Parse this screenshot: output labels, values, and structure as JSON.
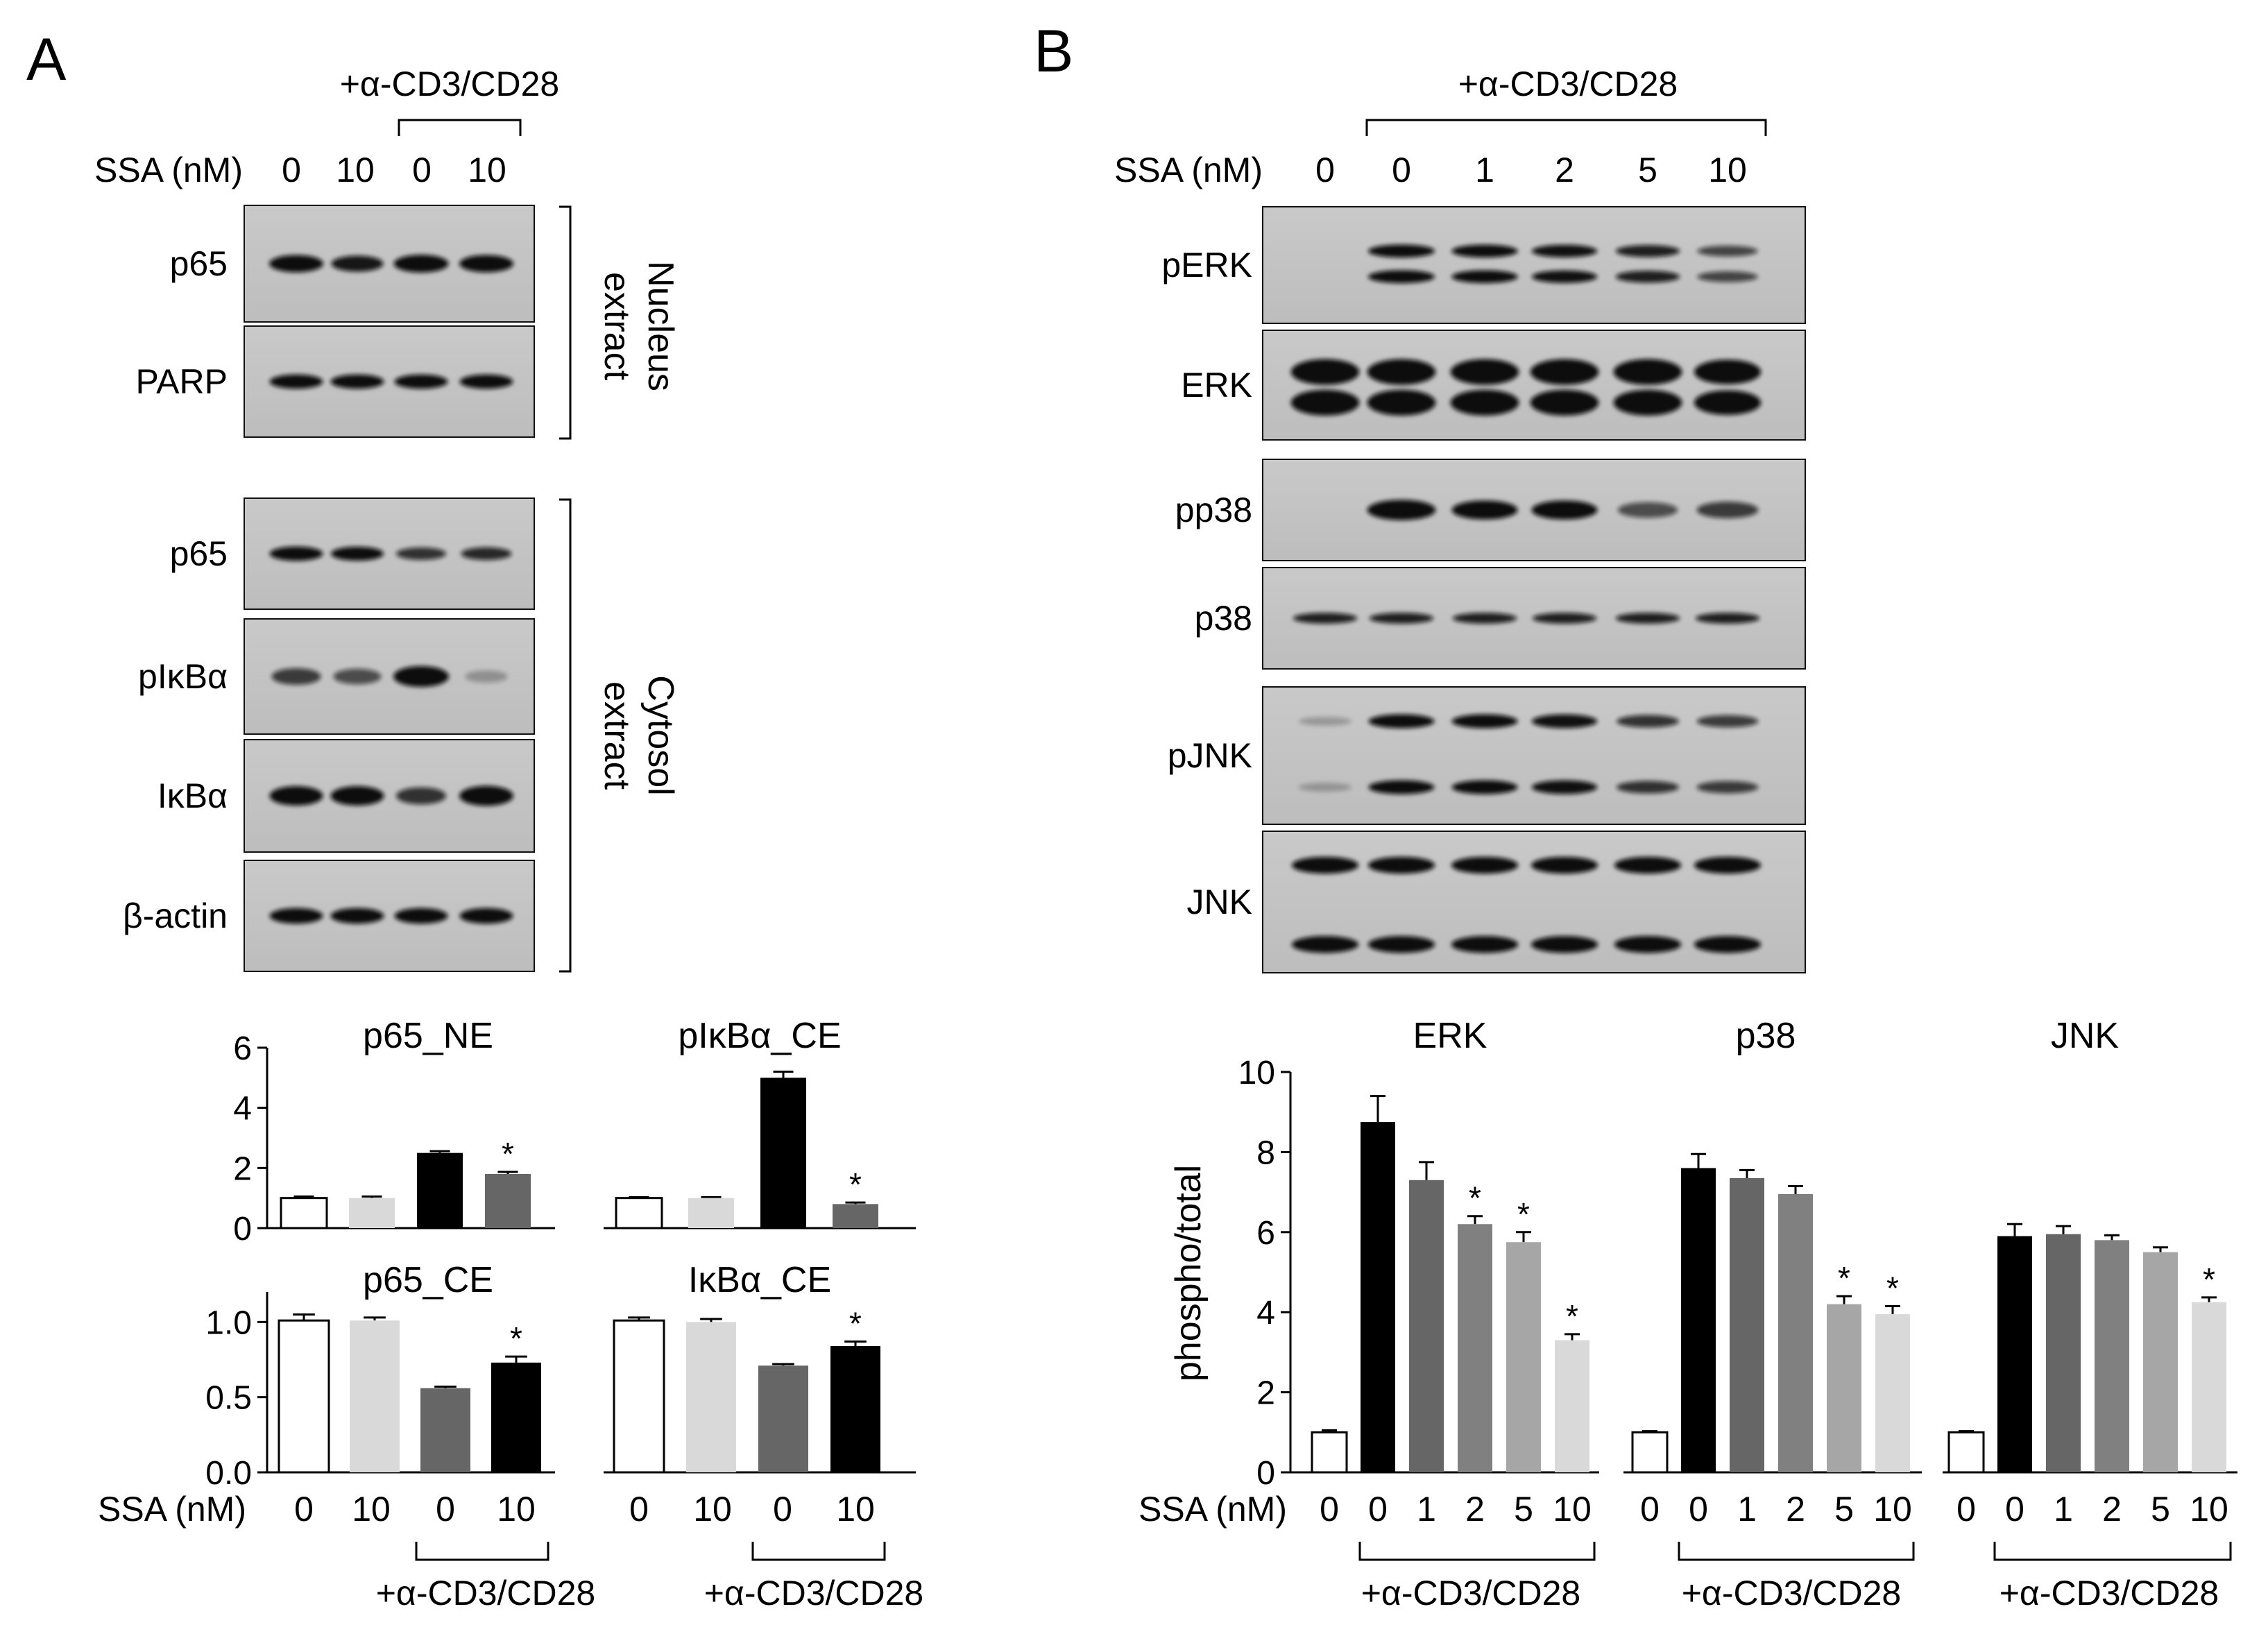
{
  "panels": {
    "A": {
      "label": "A",
      "treatment": "+α-CD3/CD28",
      "ssa_label": "SSA (nM)",
      "ssa_doses": [
        "0",
        "10",
        "0",
        "10"
      ],
      "nucleus_group": [
        "Nucleus",
        "extract"
      ],
      "cytosol_group": [
        "Cytosol",
        "extract"
      ],
      "blots": [
        {
          "label": "p65",
          "intensity": [
            0.9,
            0.75,
            0.95,
            0.9
          ]
        },
        {
          "label": "PARP",
          "intensity": [
            0.85,
            0.85,
            0.85,
            0.85
          ]
        },
        {
          "label": "p65",
          "intensity": [
            0.85,
            0.8,
            0.6,
            0.65
          ]
        },
        {
          "label": "pIκBα",
          "intensity": [
            0.55,
            0.45,
            1.0,
            0.08
          ]
        },
        {
          "label": "IκBα",
          "intensity": [
            0.85,
            0.85,
            0.6,
            0.9
          ]
        },
        {
          "label": "β-actin",
          "intensity": [
            0.85,
            0.85,
            0.85,
            0.85
          ]
        }
      ]
    },
    "B": {
      "label": "B",
      "treatment": "+α-CD3/CD28",
      "ssa_label": "SSA (nM)",
      "ssa_doses": [
        "0",
        "0",
        "1",
        "2",
        "5",
        "10"
      ],
      "blots": [
        {
          "label": "pERK",
          "intensity": [
            0.02,
            0.85,
            0.82,
            0.78,
            0.7,
            0.5
          ]
        },
        {
          "label": "ERK",
          "intensity": [
            0.95,
            0.95,
            0.95,
            0.95,
            0.95,
            0.85
          ]
        },
        {
          "label": "pp38",
          "intensity": [
            0.02,
            0.95,
            0.8,
            0.8,
            0.45,
            0.55
          ]
        },
        {
          "label": "p38",
          "intensity": [
            0.7,
            0.7,
            0.7,
            0.7,
            0.7,
            0.7
          ]
        },
        {
          "label": "pJNK",
          "intensity": [
            0.05,
            0.8,
            0.8,
            0.78,
            0.6,
            0.55
          ]
        },
        {
          "label": "JNK",
          "intensity": [
            0.85,
            0.85,
            0.85,
            0.85,
            0.85,
            0.85
          ]
        }
      ]
    }
  },
  "colors": {
    "white": "#ffffff",
    "light_gray": "#d9d9d9",
    "dark_gray": "#666666",
    "black": "#000000",
    "gray_2": "#808080",
    "gray_5": "#a6a6a6",
    "gray_10": "#d9d9d9"
  },
  "chart_data": [
    {
      "type": "bar",
      "title": "p65_NE",
      "categories": [
        "0",
        "10",
        "0",
        "10"
      ],
      "values": [
        1.0,
        1.0,
        2.5,
        1.8
      ],
      "errors": [
        0.05,
        0.05,
        0.06,
        0.07
      ],
      "significant": [
        false,
        false,
        false,
        true
      ],
      "ylim": [
        0,
        6
      ],
      "yticks": [
        "0",
        "2",
        "4",
        "6"
      ],
      "bar_colors": [
        "#ffffff",
        "#d9d9d9",
        "#000000",
        "#666666"
      ]
    },
    {
      "type": "bar",
      "title": "pIκBα_CE",
      "categories": [
        "0",
        "10",
        "0",
        "10"
      ],
      "values": [
        1.0,
        1.0,
        5.0,
        0.8
      ],
      "errors": [
        0.03,
        0.03,
        0.2,
        0.05
      ],
      "significant": [
        false,
        false,
        false,
        true
      ],
      "ylim": [
        0,
        6
      ],
      "bar_colors": [
        "#ffffff",
        "#d9d9d9",
        "#000000",
        "#666666"
      ]
    },
    {
      "type": "bar",
      "title": "p65_CE",
      "categories": [
        "0",
        "10",
        "0",
        "10"
      ],
      "values": [
        1.01,
        1.01,
        0.56,
        0.73
      ],
      "errors": [
        0.04,
        0.02,
        0.01,
        0.04
      ],
      "significant": [
        false,
        false,
        false,
        true
      ],
      "ylim": [
        0,
        1.2
      ],
      "yticks": [
        "0.0",
        "0.5",
        "1.0"
      ],
      "bar_colors": [
        "#ffffff",
        "#d9d9d9",
        "#666666",
        "#000000"
      ]
    },
    {
      "type": "bar",
      "title": "IκBα_CE",
      "categories": [
        "0",
        "10",
        "0",
        "10"
      ],
      "values": [
        1.01,
        1.0,
        0.71,
        0.84
      ],
      "errors": [
        0.02,
        0.02,
        0.01,
        0.03
      ],
      "significant": [
        false,
        false,
        false,
        true
      ],
      "ylim": [
        0,
        1.2
      ],
      "bar_colors": [
        "#ffffff",
        "#d9d9d9",
        "#666666",
        "#000000"
      ]
    },
    {
      "type": "bar",
      "title": "ERK",
      "ylabel": "phospho/total",
      "ylim": [
        0,
        10
      ],
      "yticks": [
        "0",
        "2",
        "4",
        "6",
        "8",
        "10"
      ],
      "categories": [
        "0",
        "0",
        "1",
        "2",
        "5",
        "10"
      ],
      "values": [
        1.0,
        8.75,
        7.3,
        6.2,
        5.75,
        3.3
      ],
      "errors": [
        0.05,
        0.65,
        0.45,
        0.2,
        0.25,
        0.15
      ],
      "significant": [
        false,
        false,
        false,
        true,
        true,
        true
      ],
      "bar_colors": [
        "#ffffff",
        "#000000",
        "#666666",
        "#808080",
        "#a6a6a6",
        "#d9d9d9"
      ]
    },
    {
      "type": "bar",
      "title": "p38",
      "ylim": [
        0,
        10
      ],
      "categories": [
        "0",
        "0",
        "1",
        "2",
        "5",
        "10"
      ],
      "values": [
        1.0,
        7.6,
        7.35,
        6.95,
        4.2,
        3.95
      ],
      "errors": [
        0.03,
        0.35,
        0.2,
        0.2,
        0.2,
        0.2
      ],
      "significant": [
        false,
        false,
        false,
        false,
        true,
        true
      ],
      "bar_colors": [
        "#ffffff",
        "#000000",
        "#666666",
        "#808080",
        "#a6a6a6",
        "#d9d9d9"
      ]
    },
    {
      "type": "bar",
      "title": "JNK",
      "ylim": [
        0,
        10
      ],
      "categories": [
        "0",
        "0",
        "1",
        "2",
        "5",
        "10"
      ],
      "values": [
        1.0,
        5.9,
        5.95,
        5.8,
        5.5,
        4.25
      ],
      "errors": [
        0.03,
        0.3,
        0.2,
        0.12,
        0.12,
        0.12
      ],
      "significant": [
        false,
        false,
        false,
        false,
        false,
        true
      ],
      "bar_colors": [
        "#ffffff",
        "#000000",
        "#666666",
        "#808080",
        "#a6a6a6",
        "#d9d9d9"
      ]
    }
  ]
}
